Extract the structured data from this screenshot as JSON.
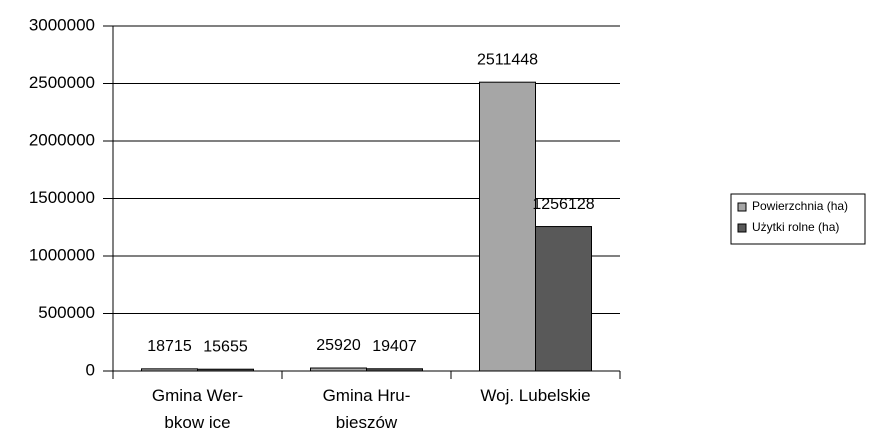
{
  "chart_data": {
    "type": "bar",
    "categories": [
      "Gmina Wer-\nbkow ice",
      "Gmina Hru-\nbieszów",
      "Woj. Lubelskie"
    ],
    "series": [
      {
        "name": "Powierzchnia (ha)",
        "color": "#a6a6a6",
        "values": [
          18715,
          25920,
          2511448
        ]
      },
      {
        "name": "Użytki rolne (ha)",
        "color": "#595959",
        "values": [
          15655,
          19407,
          1256128
        ]
      }
    ],
    "ylim": [
      0,
      3000000
    ],
    "yticks": [
      0,
      500000,
      1000000,
      1500000,
      2000000,
      2500000,
      3000000
    ],
    "grid": true,
    "legend": "right"
  }
}
